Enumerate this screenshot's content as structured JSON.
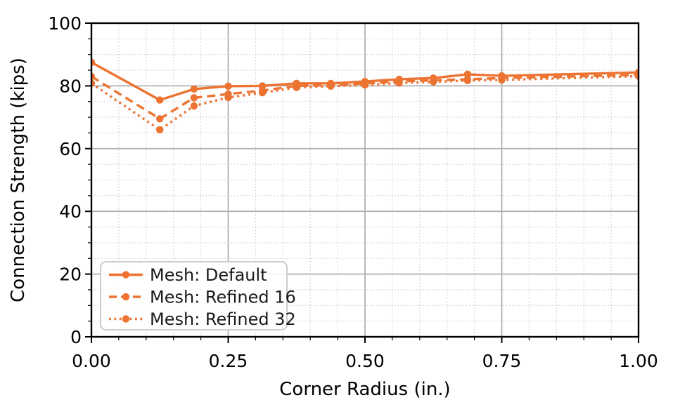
{
  "figure": {
    "background": "#ffffff"
  },
  "chart_data": {
    "type": "line",
    "title": "",
    "xlabel": "Corner Radius (in.)",
    "ylabel": "Connection Strength (kips)",
    "xlim": [
      0.0,
      1.0
    ],
    "ylim": [
      0,
      100
    ],
    "x_major_ticks": [
      0.0,
      0.25,
      0.5,
      0.75,
      1.0
    ],
    "x_major_tick_labels": [
      "0.00",
      "0.25",
      "0.50",
      "0.75",
      "1.00"
    ],
    "x_minor_step": 0.05,
    "y_major_ticks": [
      0,
      20,
      40,
      60,
      80,
      100
    ],
    "y_major_tick_labels": [
      "0",
      "20",
      "40",
      "60",
      "80",
      "100"
    ],
    "y_minor_step": 5,
    "grid": {
      "major": true,
      "minor": true,
      "major_color": "#b0b0b0",
      "minor_color": "#cccccc"
    },
    "series_color": "#ED7332",
    "x": [
      0.0,
      0.125,
      0.1875,
      0.25,
      0.3125,
      0.375,
      0.4375,
      0.5,
      0.5625,
      0.625,
      0.6875,
      0.75,
      1.0
    ],
    "series": [
      {
        "name": "Mesh: Default",
        "line_style": "solid",
        "marker": "circle",
        "values": [
          87.5,
          75.5,
          79.0,
          79.9,
          80.0,
          80.8,
          80.8,
          81.4,
          82.1,
          82.5,
          83.7,
          83.2,
          84.3
        ]
      },
      {
        "name": "Mesh: Refined 16",
        "line_style": "dashed",
        "marker": "circle",
        "values": [
          83.0,
          69.5,
          76.2,
          77.4,
          78.5,
          80.0,
          80.2,
          80.8,
          81.4,
          81.8,
          82.1,
          82.5,
          83.5
        ]
      },
      {
        "name": "Mesh: Refined 32",
        "line_style": "dotted",
        "marker": "circle",
        "values": [
          80.8,
          66.0,
          73.6,
          76.3,
          77.8,
          79.5,
          79.9,
          80.3,
          80.9,
          81.3,
          81.7,
          81.9,
          83.1
        ]
      }
    ],
    "legend": {
      "position": "lower-left"
    }
  }
}
